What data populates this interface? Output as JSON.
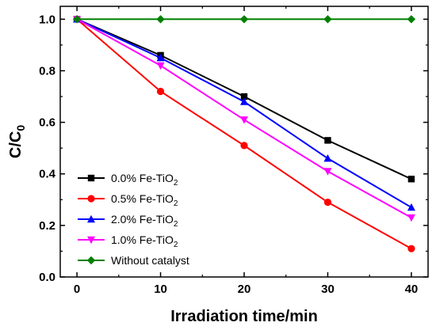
{
  "chart_data": {
    "type": "line",
    "xlabel": "Irradiation time/min",
    "ylabel": "C/C",
    "ylabel_subscript": "0",
    "xlim": [
      -2,
      42
    ],
    "ylim": [
      0.0,
      1.05
    ],
    "xticks": [
      0,
      10,
      20,
      30,
      40
    ],
    "xtick_labels": [
      "0",
      "10",
      "20",
      "30",
      "40"
    ],
    "yticks": [
      0.0,
      0.2,
      0.4,
      0.6,
      0.8,
      1.0
    ],
    "ytick_labels": [
      "0.0",
      "0.2",
      "0.4",
      "0.6",
      "0.8",
      "1.0"
    ],
    "x": [
      0,
      10,
      20,
      30,
      40
    ],
    "legend_position": "bottom-left",
    "series": [
      {
        "name": "0.0% Fe-TiO",
        "name_subscript": "2",
        "marker": "square",
        "color": "#000000",
        "values": [
          1.0,
          0.86,
          0.7,
          0.53,
          0.38
        ]
      },
      {
        "name": "0.5% Fe-TiO",
        "name_subscript": "2",
        "marker": "circle",
        "color": "#ff0000",
        "values": [
          1.0,
          0.72,
          0.51,
          0.29,
          0.11
        ]
      },
      {
        "name": "2.0% Fe-TiO",
        "name_subscript": "2",
        "marker": "triangle-up",
        "color": "#0000ff",
        "values": [
          1.0,
          0.85,
          0.68,
          0.46,
          0.27
        ]
      },
      {
        "name": "1.0% Fe-TiO",
        "name_subscript": "2",
        "marker": "triangle-down",
        "color": "#ff00ff",
        "values": [
          1.0,
          0.82,
          0.61,
          0.41,
          0.23
        ]
      },
      {
        "name": "Without catalyst",
        "marker": "diamond",
        "color": "#008000",
        "values": [
          1.0,
          1.0,
          1.0,
          1.0,
          1.0
        ]
      }
    ]
  }
}
